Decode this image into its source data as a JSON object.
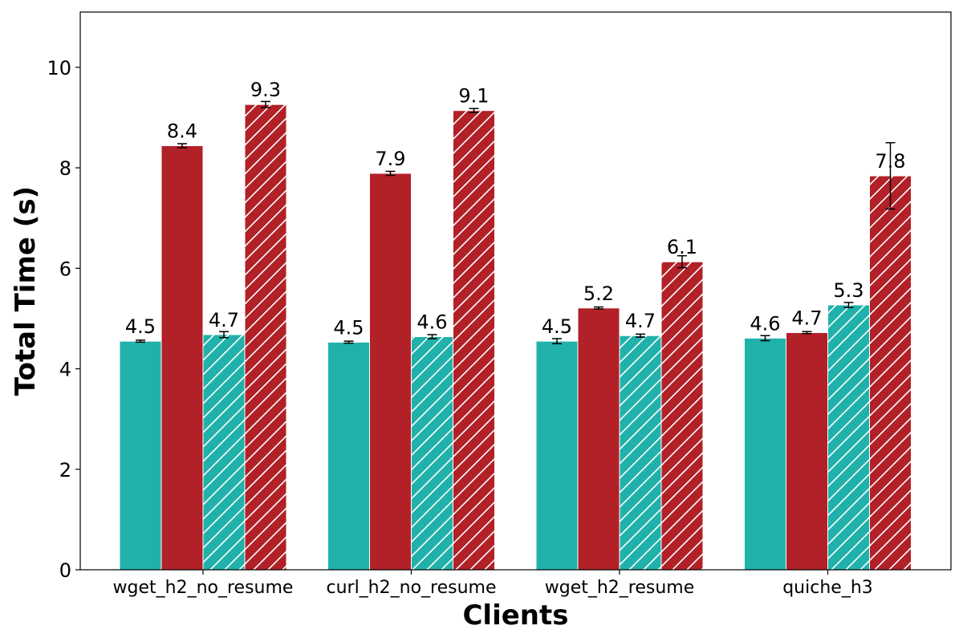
{
  "chart_data": {
    "type": "bar",
    "title": "",
    "xlabel": "Clients",
    "ylabel": "Total Time (s)",
    "ylim": [
      0,
      11.1
    ],
    "yticks": [
      0,
      2,
      4,
      6,
      8,
      10
    ],
    "categories": [
      "wget_h2_no_resume",
      "curl_h2_no_resume",
      "wget_h2_resume",
      "quiche_h3"
    ],
    "grid": false,
    "legend": "none",
    "series": [
      {
        "color": "#20b2aa",
        "hatch": false,
        "values": [
          4.55,
          4.53,
          4.55,
          4.61
        ],
        "errors": [
          0.02,
          0.02,
          0.05,
          0.05
        ],
        "labels": [
          "4.5",
          "4.5",
          "4.5",
          "4.6"
        ]
      },
      {
        "color": "#b22028",
        "hatch": false,
        "values": [
          8.44,
          7.89,
          5.21,
          4.72
        ],
        "errors": [
          0.04,
          0.04,
          0.02,
          0.02
        ],
        "labels": [
          "8.4",
          "7.9",
          "5.2",
          "4.7"
        ]
      },
      {
        "color": "#20b2aa",
        "hatch": true,
        "values": [
          4.68,
          4.64,
          4.66,
          5.27
        ],
        "errors": [
          0.06,
          0.04,
          0.03,
          0.05
        ],
        "labels": [
          "4.7",
          "4.6",
          "4.7",
          "5.3"
        ]
      },
      {
        "color": "#b22028",
        "hatch": true,
        "values": [
          9.26,
          9.14,
          6.13,
          7.84
        ],
        "errors": [
          0.06,
          0.04,
          0.12,
          0.66
        ],
        "labels": [
          "9.3",
          "9.1",
          "6.1",
          "7.8"
        ]
      }
    ]
  }
}
